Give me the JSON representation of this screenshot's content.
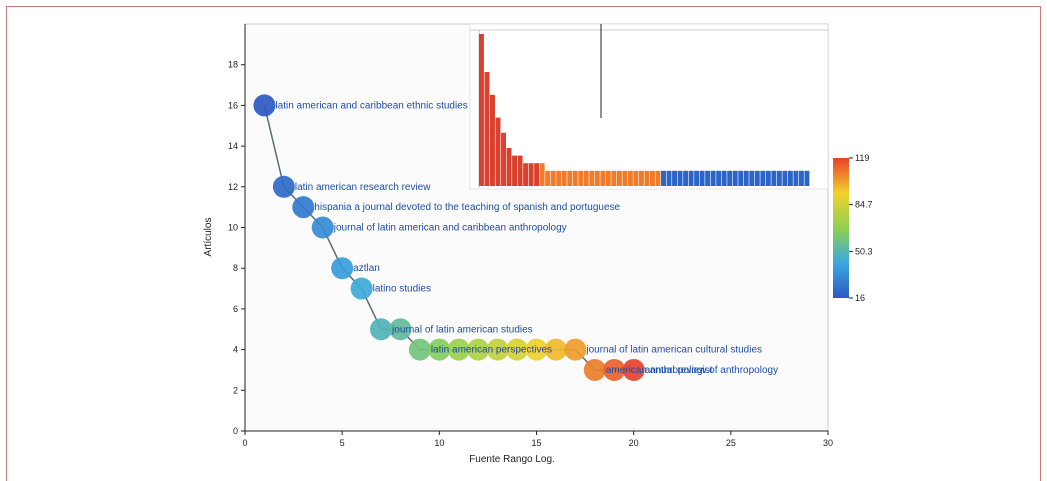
{
  "chart_data": {
    "type": "scatter",
    "xlabel": "Fuente Rango Log.",
    "ylabel": "Artículos",
    "xlim": [
      0,
      30
    ],
    "ylim": [
      0,
      20
    ],
    "x_ticks": [
      0,
      5,
      10,
      15,
      20,
      25,
      30
    ],
    "y_ticks": [
      0,
      2,
      4,
      6,
      8,
      10,
      12,
      14,
      16,
      18
    ],
    "grid": false,
    "colorbar": {
      "ticks": [
        "119",
        "84.7",
        "50.3",
        "16"
      ]
    },
    "points": [
      {
        "x": 1,
        "y": 16,
        "label": "latin american and caribbean ethnic studies"
      },
      {
        "x": 2,
        "y": 12,
        "label": "latin american research review"
      },
      {
        "x": 3,
        "y": 11,
        "label": "hispania a journal devoted to the teaching of spanish and portuguese"
      },
      {
        "x": 4,
        "y": 10,
        "label": "journal of latin american and caribbean anthropology"
      },
      {
        "x": 5,
        "y": 8,
        "label": "aztlan"
      },
      {
        "x": 6,
        "y": 7,
        "label": "latino studies"
      },
      {
        "x": 7,
        "y": 5,
        "label": "journal of latin american studies"
      },
      {
        "x": 8,
        "y": 5,
        "label": ""
      },
      {
        "x": 9,
        "y": 4,
        "label": "latin american perspectives"
      },
      {
        "x": 10,
        "y": 4,
        "label": ""
      },
      {
        "x": 11,
        "y": 4,
        "label": ""
      },
      {
        "x": 12,
        "y": 4,
        "label": ""
      },
      {
        "x": 13,
        "y": 4,
        "label": ""
      },
      {
        "x": 14,
        "y": 4,
        "label": ""
      },
      {
        "x": 15,
        "y": 4,
        "label": ""
      },
      {
        "x": 16,
        "y": 4,
        "label": ""
      },
      {
        "x": 17,
        "y": 4,
        "label": "journal of latin american cultural studies"
      },
      {
        "x": 18,
        "y": 3,
        "label": "american anthropologist"
      },
      {
        "x": 19,
        "y": 3,
        "label": ""
      },
      {
        "x": 20,
        "y": 3,
        "label": "annual review of anthropology"
      }
    ],
    "inset": {
      "type": "bar",
      "values": [
        20,
        15,
        12,
        9,
        7,
        5,
        4,
        4,
        3,
        3,
        3,
        3,
        2,
        2,
        2,
        2,
        2,
        2,
        2,
        2,
        2,
        2,
        2,
        2,
        2,
        2,
        2,
        2,
        2,
        2,
        2,
        2,
        2,
        2,
        2,
        2,
        2,
        2,
        2,
        2,
        2,
        2,
        2,
        2,
        2,
        2,
        2,
        2,
        2,
        2,
        2,
        2,
        2,
        2,
        2,
        2,
        2,
        2,
        2,
        2
      ]
    }
  }
}
